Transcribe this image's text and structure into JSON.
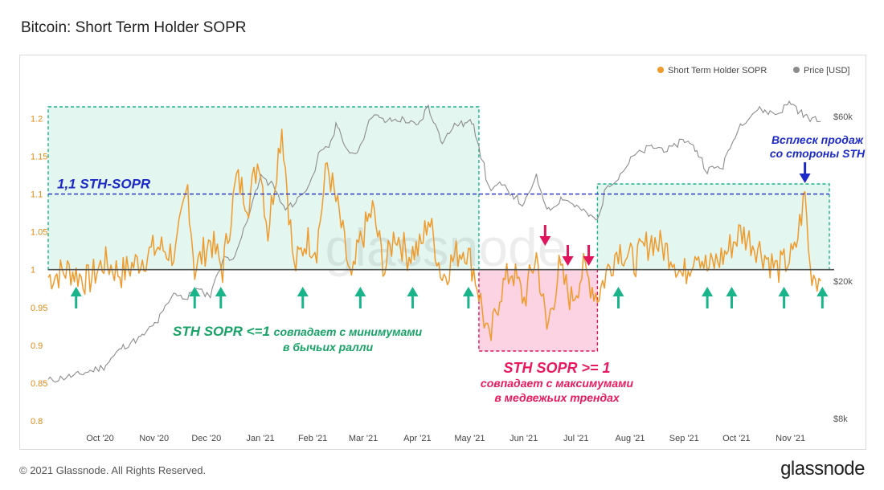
{
  "title": "Bitcoin: Short Term Holder SOPR",
  "footer": {
    "copyright": "© 2021 Glassnode. All Rights Reserved.",
    "logo": "glassnode"
  },
  "colors": {
    "sopr": "#f09a2b",
    "price": "#8c8c8c",
    "green_box": "#19b48a",
    "green_fill": "#e3f6ef",
    "red_box": "#e0145a",
    "red_fill": "#fbd3e2",
    "blue": "#1c2ac8",
    "green_text": "#17a266",
    "red_text": "#e8195d",
    "baseline": "#555555"
  },
  "chart_data": {
    "type": "line",
    "title": "Bitcoin: Short Term Holder SOPR",
    "legend": [
      {
        "name": "Short Term Holder SOPR",
        "color": "#f09a2b"
      },
      {
        "name": "Price [USD]",
        "color": "#8c8c8c"
      }
    ],
    "legend_position": "top-right",
    "x_range": [
      "2020-09-08",
      "2021-11-30"
    ],
    "x_ticks": [
      "Oct '20",
      "Nov '20",
      "Dec '20",
      "Jan '21",
      "Feb '21",
      "Mar '21",
      "Apr '21",
      "May '21",
      "Jun '21",
      "Jul '21",
      "Aug '21",
      "Sep '21",
      "Oct '21",
      "Nov '21"
    ],
    "y_left": {
      "ticks": [
        "0.8",
        "0.85",
        "0.9",
        "0.95",
        "1",
        "1.05",
        "1.1",
        "1.15",
        "1.2"
      ],
      "range": [
        0.8,
        1.21
      ]
    },
    "y_right": {
      "scale": "log",
      "ticks": [
        "$8k",
        "$20k",
        "$60k"
      ],
      "tick_values": [
        8000,
        20000,
        60000
      ]
    },
    "watermark": "glassnode",
    "series": [
      {
        "name": "Short Term Holder SOPR",
        "axis": "left",
        "x": [
          "2020-09-08",
          "2020-09-20",
          "2020-10-01",
          "2020-10-10",
          "2020-10-20",
          "2020-11-01",
          "2020-11-10",
          "2020-11-20",
          "2020-11-27",
          "2020-12-01",
          "2020-12-10",
          "2020-12-17",
          "2020-12-25",
          "2021-01-01",
          "2021-01-07",
          "2021-01-12",
          "2021-01-20",
          "2021-01-27",
          "2021-02-03",
          "2021-02-09",
          "2021-02-15",
          "2021-02-22",
          "2021-03-01",
          "2021-03-05",
          "2021-03-13",
          "2021-03-20",
          "2021-03-26",
          "2021-04-02",
          "2021-04-10",
          "2021-04-14",
          "2021-04-22",
          "2021-04-30",
          "2021-05-05",
          "2021-05-10",
          "2021-05-13",
          "2021-05-19",
          "2021-05-25",
          "2021-06-01",
          "2021-06-08",
          "2021-06-15",
          "2021-06-21",
          "2021-06-28",
          "2021-07-05",
          "2021-07-12",
          "2021-07-20",
          "2021-07-26",
          "2021-08-01",
          "2021-08-10",
          "2021-08-20",
          "2021-09-01",
          "2021-09-07",
          "2021-09-15",
          "2021-09-21",
          "2021-10-01",
          "2021-10-10",
          "2021-10-20",
          "2021-10-31",
          "2021-11-10",
          "2021-11-16",
          "2021-11-19",
          "2021-11-25"
        ],
        "values": [
          0.99,
          1.0,
          0.985,
          1.01,
          0.995,
          1.015,
          1.03,
          1.02,
          1.11,
          1.0,
          1.04,
          1.0,
          1.12,
          1.09,
          1.15,
          1.05,
          1.19,
          1.0,
          1.04,
          1.03,
          1.14,
          1.07,
          0.98,
          1.03,
          1.08,
          1.0,
          1.05,
          1.02,
          1.03,
          1.07,
          0.99,
          1.02,
          1.03,
          1.0,
          0.97,
          0.9,
          0.97,
          1.0,
          0.96,
          1.02,
          0.92,
          1.0,
          0.96,
          1.0,
          0.965,
          1.0,
          1.03,
          1.01,
          1.04,
          1.02,
          0.99,
          1.03,
          1.0,
          1.02,
          1.05,
          1.03,
          1.0,
          1.02,
          1.1,
          1.0,
          0.985
        ]
      },
      {
        "name": "Price [USD]",
        "axis": "right",
        "x": [
          "2020-09-08",
          "2020-09-25",
          "2020-10-10",
          "2020-10-21",
          "2020-11-01",
          "2020-11-10",
          "2020-11-20",
          "2020-11-27",
          "2020-12-01",
          "2020-12-10",
          "2020-12-17",
          "2020-12-25",
          "2021-01-02",
          "2021-01-08",
          "2021-01-15",
          "2021-01-22",
          "2021-01-28",
          "2021-02-05",
          "2021-02-10",
          "2021-02-16",
          "2021-02-21",
          "2021-02-28",
          "2021-03-05",
          "2021-03-13",
          "2021-03-20",
          "2021-03-31",
          "2021-04-08",
          "2021-04-14",
          "2021-04-22",
          "2021-04-30",
          "2021-05-05",
          "2021-05-10",
          "2021-05-13",
          "2021-05-19",
          "2021-05-25",
          "2021-06-01",
          "2021-06-08",
          "2021-06-15",
          "2021-06-22",
          "2021-06-30",
          "2021-07-08",
          "2021-07-15",
          "2021-07-20",
          "2021-07-26",
          "2021-08-01",
          "2021-08-10",
          "2021-08-20",
          "2021-09-01",
          "2021-09-07",
          "2021-09-15",
          "2021-09-21",
          "2021-09-30",
          "2021-10-10",
          "2021-10-20",
          "2021-10-31",
          "2021-11-08",
          "2021-11-16",
          "2021-11-25"
        ],
        "values": [
          10300,
          10700,
          11300,
          12900,
          13800,
          15300,
          18600,
          17700,
          19000,
          18200,
          23000,
          23900,
          32000,
          40000,
          38000,
          32000,
          34000,
          38000,
          46000,
          49000,
          57000,
          46000,
          48000,
          61000,
          58000,
          59000,
          56000,
          64000,
          51000,
          57000,
          57000,
          58000,
          50000,
          37000,
          38000,
          36000,
          33000,
          40000,
          32000,
          35000,
          33000,
          31000,
          30000,
          38000,
          40000,
          46000,
          49000,
          48000,
          52000,
          48000,
          42000,
          43000,
          57000,
          63000,
          61000,
          66000,
          60000,
          58000
        ]
      }
    ],
    "annotations": {
      "sth_line_label": "1,1 STH-SOPR",
      "spike_label_1": "Всплеск продаж",
      "spike_label_2": "со стороны STH",
      "green_label_1": "STH SOPR <=1",
      "green_label_2": "совпадает с минимумами",
      "green_label_3": "в бычьих ралли",
      "red_label_1": "STH SOPR >= 1",
      "red_label_2": "совпадает с максимумами",
      "red_label_3": "в медвежьих трендах",
      "green_arrow_dates": [
        "2020-09-24",
        "2020-12-01",
        "2020-12-16",
        "2021-02-01",
        "2021-03-06",
        "2021-04-05",
        "2021-05-07",
        "2021-08-01",
        "2021-09-21",
        "2021-10-05",
        "2021-11-04",
        "2021-11-26"
      ],
      "red_arrow_dates": [
        "2021-06-20",
        "2021-07-03",
        "2021-07-15"
      ],
      "blue_arrow_date": "2021-11-16"
    }
  }
}
